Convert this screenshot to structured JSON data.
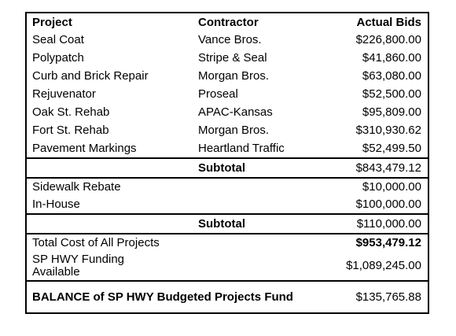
{
  "headers": {
    "project": "Project",
    "contractor": "Contractor",
    "bids": "Actual Bids"
  },
  "contracted_projects": [
    {
      "project": "Seal Coat",
      "contractor": "Vance Bros.",
      "bid": "$226,800.00"
    },
    {
      "project": "Polypatch",
      "contractor": "Stripe & Seal",
      "bid": "$41,860.00"
    },
    {
      "project": "Curb and Brick Repair",
      "contractor": "Morgan Bros.",
      "bid": "$63,080.00"
    },
    {
      "project": "Rejuvenator",
      "contractor": "Proseal",
      "bid": "$52,500.00"
    },
    {
      "project": "Oak St. Rehab",
      "contractor": "APAC-Kansas",
      "bid": "$95,809.00"
    },
    {
      "project": "Fort St. Rehab",
      "contractor": "Morgan Bros.",
      "bid": "$310,930.62"
    },
    {
      "project": "Pavement Markings",
      "contractor": "Heartland Traffic",
      "bid": "$52,499.50"
    }
  ],
  "subtotal_1": {
    "label": "Subtotal",
    "value": "$843,479.12"
  },
  "other_projects": [
    {
      "project": "Sidewalk Rebate",
      "bid": "$10,000.00"
    },
    {
      "project": "In-House",
      "bid": "$100,000.00"
    }
  ],
  "subtotal_2": {
    "label": "Subtotal",
    "value": "$110,000.00"
  },
  "total_cost": {
    "label": "Total Cost of All Projects",
    "value": "$953,479.12"
  },
  "funding": {
    "label": "SP HWY Funding Available",
    "value": "$1,089,245.00"
  },
  "balance": {
    "label": "BALANCE of SP HWY Budgeted Projects Fund",
    "value": "$135,765.88"
  }
}
